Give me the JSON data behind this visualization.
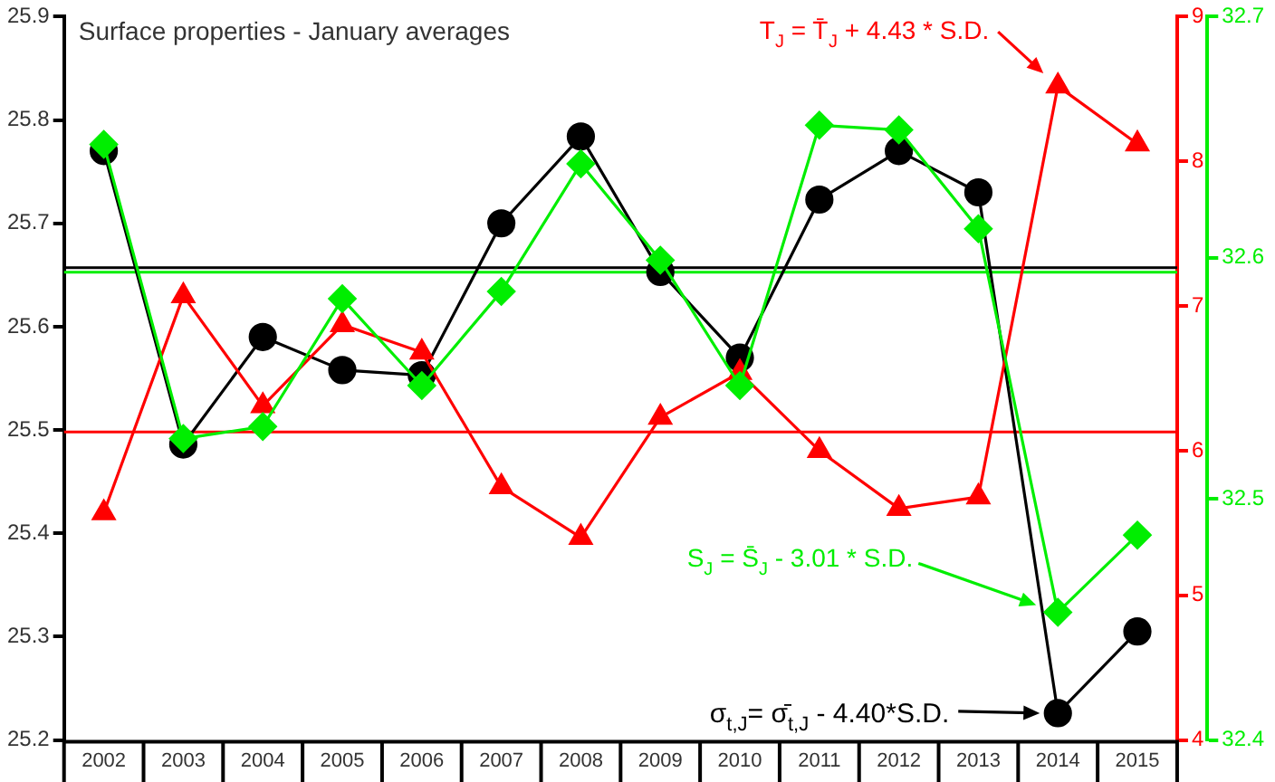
{
  "chart_data": {
    "type": "line",
    "title": "Surface properties - January averages",
    "categories": [
      "2002",
      "2003",
      "2004",
      "2005",
      "2006",
      "2007",
      "2008",
      "2009",
      "2010",
      "2011",
      "2012",
      "2013",
      "2014",
      "2015"
    ],
    "series": [
      {
        "color": "#000000",
        "marker": "circle",
        "values": [
          25.77,
          25.486,
          25.59,
          25.558,
          25.553,
          25.7,
          25.784,
          25.653,
          25.57,
          25.723,
          25.77,
          25.73,
          25.226,
          25.305
        ]
      },
      {
        "color": "#ff0000",
        "marker": "triangle",
        "axis": "y2",
        "values": [
          5.57,
          7.07,
          6.31,
          6.87,
          6.68,
          5.75,
          5.4,
          6.23,
          6.54,
          6.0,
          5.6,
          5.68,
          8.52,
          8.12
        ]
      },
      {
        "color": "#00ee00",
        "marker": "diamond",
        "axis": "y3",
        "values": [
          32.647,
          32.525,
          32.53,
          32.583,
          32.547,
          32.586,
          32.639,
          32.599,
          32.547,
          32.655,
          32.653,
          32.612,
          32.453,
          32.485
        ]
      }
    ],
    "ylim": [
      25.2,
      25.9
    ],
    "yticks": [
      25.2,
      25.3,
      25.4,
      25.5,
      25.6,
      25.7,
      25.8,
      25.9
    ],
    "y2lim": [
      4,
      9
    ],
    "y2ticks": [
      4,
      5,
      6,
      7,
      8,
      9
    ],
    "y3lim": [
      32.4,
      32.7
    ],
    "y3ticks": [
      32.4,
      32.5,
      32.6,
      32.7
    ],
    "ref_lines": [
      {
        "axis": "y",
        "value": 25.657,
        "color": "#000000"
      },
      {
        "axis": "y2",
        "value": 6.13,
        "color": "#ff0000"
      },
      {
        "axis": "y3",
        "value": 32.594,
        "color": "#00ee00"
      }
    ],
    "annotations": [
      "σ$_{t,J}$= σ̄$_{t,J}$ - 4.40*S.D.",
      "T$_{J}$ = T̄$_{J}$ + 4.43 * S.D.",
      "S$_{J}$ = S̄$_{J}$ - 3.01 * S.D."
    ],
    "grid": false,
    "legend": false
  }
}
